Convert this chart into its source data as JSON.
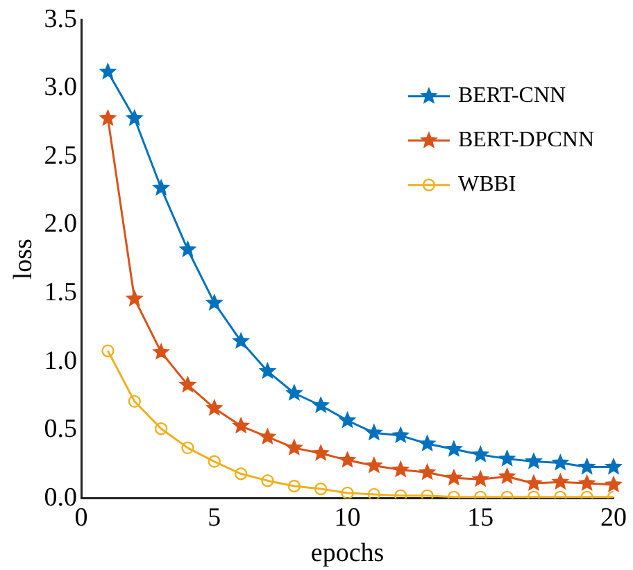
{
  "chart_data": {
    "type": "line",
    "xlabel": "epochs",
    "ylabel": "loss",
    "x": [
      1,
      2,
      3,
      4,
      5,
      6,
      7,
      8,
      9,
      10,
      11,
      12,
      13,
      14,
      15,
      16,
      17,
      18,
      19,
      20
    ],
    "series": [
      {
        "name": "BERT-CNN",
        "color": "#0072bd",
        "marker": "star",
        "values": [
          3.12,
          2.78,
          2.27,
          1.82,
          1.43,
          1.15,
          0.93,
          0.77,
          0.68,
          0.57,
          0.48,
          0.46,
          0.4,
          0.36,
          0.32,
          0.29,
          0.27,
          0.26,
          0.23,
          0.23
        ]
      },
      {
        "name": "BERT-DPCNN",
        "color": "#d95319",
        "marker": "star",
        "values": [
          2.78,
          1.46,
          1.07,
          0.83,
          0.66,
          0.53,
          0.45,
          0.37,
          0.33,
          0.28,
          0.24,
          0.21,
          0.19,
          0.15,
          0.14,
          0.16,
          0.11,
          0.12,
          0.11,
          0.1
        ]
      },
      {
        "name": "WBBI",
        "color": "#edb120",
        "marker": "circle",
        "values": [
          1.08,
          0.71,
          0.51,
          0.37,
          0.27,
          0.18,
          0.13,
          0.09,
          0.07,
          0.04,
          0.03,
          0.02,
          0.02,
          0.01,
          0.01,
          0.01,
          0.01,
          0.01,
          0.01,
          0.01
        ]
      }
    ],
    "xlim": [
      0,
      20
    ],
    "xticks": [
      0,
      5,
      10,
      15,
      20
    ],
    "ylim": [
      0,
      3.5
    ],
    "yticks": [
      {
        "value": 0,
        "label": "0.0"
      },
      0.5,
      {
        "value": 1,
        "label": "1.0"
      },
      1.5,
      {
        "value": 2,
        "label": "2.0"
      },
      2.5,
      {
        "value": 3,
        "label": "3.0"
      },
      3.5
    ],
    "grid": false,
    "legend": "top right",
    "line_style": "solid"
  }
}
